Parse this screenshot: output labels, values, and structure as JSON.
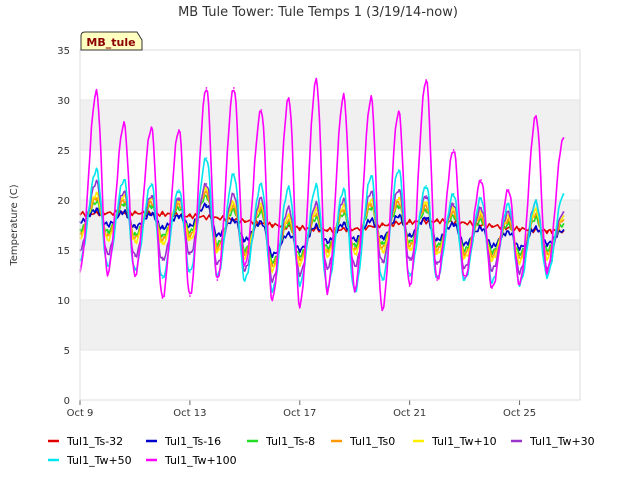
{
  "chart_data": {
    "type": "line",
    "title": "MB Tule Tower: Tule Temps 1 (3/19/14-now)",
    "xlabel": "",
    "ylabel": "Temperature (C)",
    "badge": "MB_tule",
    "ylim": [
      0,
      35
    ],
    "yticks": [
      0,
      5,
      10,
      15,
      20,
      25,
      30,
      35
    ],
    "xlim_days": [
      9,
      27.2
    ],
    "xticks": [
      {
        "day": 9,
        "label": "Oct 9"
      },
      {
        "day": 13,
        "label": "Oct 13"
      },
      {
        "day": 17,
        "label": "Oct 17"
      },
      {
        "day": 21,
        "label": "Oct 21"
      },
      {
        "day": 25,
        "label": "Oct 25"
      }
    ],
    "grid_bands": true,
    "legend_position": "bottom",
    "series": [
      {
        "name": "Tul1_Ts-32",
        "color": "#e00000",
        "x": [
          "Oct 9",
          "Oct 10",
          "Oct 11",
          "Oct 12",
          "Oct 13",
          "Oct 14",
          "Oct 15",
          "Oct 16",
          "Oct 17",
          "Oct 18",
          "Oct 19",
          "Oct 20",
          "Oct 21",
          "Oct 22",
          "Oct 23",
          "Oct 24",
          "Oct 25",
          "Oct 26",
          "Oct 26.6"
        ],
        "y": [
          18.6,
          18.7,
          18.7,
          18.6,
          18.4,
          18.2,
          17.9,
          17.5,
          17.2,
          17.0,
          17.1,
          17.5,
          17.8,
          17.9,
          17.7,
          17.4,
          17.1,
          16.9,
          16.9
        ]
      },
      {
        "name": "Tul1_Ts-16",
        "color": "#0000cc",
        "x": [
          "Oct 9",
          "Oct 9.6",
          "Oct 10",
          "Oct 10.6",
          "Oct 11",
          "Oct 11.6",
          "Oct 12",
          "Oct 12.6",
          "Oct 13",
          "Oct 13.6",
          "Oct 14",
          "Oct 14.6",
          "Oct 15",
          "Oct 15.6",
          "Oct 16",
          "Oct 16.6",
          "Oct 17",
          "Oct 17.6",
          "Oct 18",
          "Oct 18.6",
          "Oct 19",
          "Oct 19.6",
          "Oct 20",
          "Oct 20.6",
          "Oct 21",
          "Oct 21.6",
          "Oct 22",
          "Oct 22.6",
          "Oct 23",
          "Oct 23.6",
          "Oct 24",
          "Oct 24.6",
          "Oct 25",
          "Oct 25.6",
          "Oct 26",
          "Oct 26.6"
        ],
        "y": [
          17.8,
          19.0,
          17.5,
          18.8,
          17.3,
          18.6,
          17.2,
          18.4,
          17.4,
          19.5,
          16.5,
          18.0,
          16.0,
          17.8,
          14.5,
          16.6,
          15.0,
          17.4,
          15.8,
          17.6,
          16.0,
          18.0,
          16.2,
          18.4,
          16.4,
          18.2,
          16.0,
          17.6,
          15.6,
          17.2,
          15.4,
          16.8,
          15.2,
          17.2,
          15.6,
          17.0
        ]
      },
      {
        "name": "Tul1_Ts-8",
        "color": "#22dd22",
        "x": [
          "Oct 9",
          "Oct 9.6",
          "Oct 10",
          "Oct 10.6",
          "Oct 11",
          "Oct 11.6",
          "Oct 12",
          "Oct 12.6",
          "Oct 13",
          "Oct 13.6",
          "Oct 14",
          "Oct 14.6",
          "Oct 15",
          "Oct 15.6",
          "Oct 16",
          "Oct 16.6",
          "Oct 17",
          "Oct 17.6",
          "Oct 18",
          "Oct 18.6",
          "Oct 19",
          "Oct 19.6",
          "Oct 20",
          "Oct 20.6",
          "Oct 21",
          "Oct 21.6",
          "Oct 22",
          "Oct 22.6",
          "Oct 23",
          "Oct 23.6",
          "Oct 24",
          "Oct 24.6",
          "Oct 25",
          "Oct 25.6",
          "Oct 26",
          "Oct 26.6"
        ],
        "y": [
          17.0,
          19.8,
          16.8,
          19.6,
          16.5,
          19.4,
          16.4,
          19.2,
          16.8,
          20.4,
          15.6,
          19.0,
          15.0,
          18.8,
          13.8,
          17.6,
          14.4,
          18.2,
          15.2,
          18.6,
          15.4,
          19.2,
          15.6,
          19.4,
          15.8,
          19.0,
          15.4,
          18.4,
          15.0,
          18.0,
          14.8,
          17.6,
          14.6,
          18.2,
          15.0,
          17.6
        ]
      },
      {
        "name": "Tul1_Ts0",
        "color": "#ff9900",
        "x": [
          "Oct 9",
          "Oct 9.6",
          "Oct 10",
          "Oct 10.6",
          "Oct 11",
          "Oct 11.6",
          "Oct 12",
          "Oct 12.6",
          "Oct 13",
          "Oct 13.6",
          "Oct 14",
          "Oct 14.6",
          "Oct 15",
          "Oct 15.6",
          "Oct 16",
          "Oct 16.6",
          "Oct 17",
          "Oct 17.6",
          "Oct 18",
          "Oct 18.6",
          "Oct 19",
          "Oct 19.6",
          "Oct 20",
          "Oct 20.6",
          "Oct 21",
          "Oct 21.6",
          "Oct 22",
          "Oct 22.6",
          "Oct 23",
          "Oct 23.6",
          "Oct 24",
          "Oct 24.6",
          "Oct 25",
          "Oct 25.6",
          "Oct 26",
          "Oct 26.6"
        ],
        "y": [
          16.6,
          20.2,
          16.4,
          20.0,
          16.2,
          19.8,
          16.0,
          19.6,
          16.4,
          20.8,
          15.2,
          19.4,
          14.6,
          19.2,
          13.4,
          18.0,
          14.0,
          18.6,
          14.8,
          19.0,
          15.0,
          19.6,
          15.2,
          19.8,
          15.4,
          19.4,
          15.0,
          18.8,
          14.6,
          18.4,
          14.4,
          18.0,
          14.2,
          18.6,
          14.6,
          18.0
        ]
      },
      {
        "name": "Tul1_Tw+10",
        "color": "#ffee00",
        "x": [
          "Oct 9",
          "Oct 9.6",
          "Oct 10",
          "Oct 10.6",
          "Oct 11",
          "Oct 11.6",
          "Oct 12",
          "Oct 12.6",
          "Oct 13",
          "Oct 13.6",
          "Oct 14",
          "Oct 14.6",
          "Oct 15",
          "Oct 15.6",
          "Oct 16",
          "Oct 16.6",
          "Oct 17",
          "Oct 17.6",
          "Oct 18",
          "Oct 18.6",
          "Oct 19",
          "Oct 19.6",
          "Oct 20",
          "Oct 20.6",
          "Oct 21",
          "Oct 21.6",
          "Oct 22",
          "Oct 22.6",
          "Oct 23",
          "Oct 23.6",
          "Oct 24",
          "Oct 24.6",
          "Oct 25",
          "Oct 25.6",
          "Oct 26",
          "Oct 26.6"
        ],
        "y": [
          16.2,
          20.6,
          16.0,
          20.4,
          15.8,
          20.2,
          15.6,
          20.0,
          16.0,
          21.2,
          14.8,
          19.8,
          14.2,
          19.6,
          13.0,
          18.4,
          13.6,
          19.0,
          14.4,
          19.4,
          14.6,
          20.0,
          14.8,
          20.2,
          15.0,
          19.8,
          14.6,
          19.2,
          14.2,
          18.8,
          14.0,
          18.4,
          13.8,
          19.0,
          14.2,
          18.4
        ]
      },
      {
        "name": "Tul1_Tw+30",
        "color": "#9933cc",
        "x": [
          "Oct 9",
          "Oct 9.6",
          "Oct 10",
          "Oct 10.6",
          "Oct 11",
          "Oct 11.6",
          "Oct 12",
          "Oct 12.6",
          "Oct 13",
          "Oct 13.6",
          "Oct 14",
          "Oct 14.6",
          "Oct 15",
          "Oct 15.6",
          "Oct 16",
          "Oct 16.6",
          "Oct 17",
          "Oct 17.6",
          "Oct 18",
          "Oct 18.6",
          "Oct 19",
          "Oct 19.6",
          "Oct 20",
          "Oct 20.6",
          "Oct 21",
          "Oct 21.6",
          "Oct 22",
          "Oct 22.6",
          "Oct 23",
          "Oct 23.6",
          "Oct 24",
          "Oct 24.6",
          "Oct 25",
          "Oct 25.6",
          "Oct 26",
          "Oct 26.6"
        ],
        "y": [
          15.0,
          21.8,
          14.6,
          20.8,
          14.4,
          20.4,
          14.0,
          20.2,
          14.6,
          21.6,
          13.6,
          20.6,
          13.0,
          20.2,
          12.0,
          19.2,
          12.6,
          19.6,
          13.2,
          20.0,
          13.4,
          20.8,
          13.8,
          21.0,
          14.0,
          20.4,
          13.6,
          19.6,
          13.2,
          19.2,
          13.0,
          18.8,
          12.8,
          19.8,
          13.2,
          18.8
        ]
      },
      {
        "name": "Tul1_Tw+50",
        "color": "#00e5ee",
        "x": [
          "Oct 9",
          "Oct 9.6",
          "Oct 10",
          "Oct 10.6",
          "Oct 11",
          "Oct 11.6",
          "Oct 12",
          "Oct 12.6",
          "Oct 13",
          "Oct 13.6",
          "Oct 14",
          "Oct 14.6",
          "Oct 15",
          "Oct 15.6",
          "Oct 16",
          "Oct 16.6",
          "Oct 17",
          "Oct 17.6",
          "Oct 18",
          "Oct 18.6",
          "Oct 19",
          "Oct 19.6",
          "Oct 20",
          "Oct 20.6",
          "Oct 21",
          "Oct 21.6",
          "Oct 22",
          "Oct 22.6",
          "Oct 23",
          "Oct 23.6",
          "Oct 24",
          "Oct 24.6",
          "Oct 25",
          "Oct 25.6",
          "Oct 26",
          "Oct 26.6"
        ],
        "y": [
          14.0,
          23.0,
          13.4,
          22.0,
          13.0,
          21.6,
          12.2,
          21.0,
          12.8,
          24.2,
          12.4,
          22.6,
          12.0,
          21.6,
          11.0,
          21.2,
          11.6,
          21.4,
          11.2,
          21.0,
          10.8,
          22.4,
          12.0,
          23.0,
          12.4,
          21.4,
          12.2,
          20.6,
          12.0,
          20.2,
          11.8,
          19.6,
          11.6,
          19.8,
          12.4,
          20.6
        ]
      },
      {
        "name": "Tul1_Tw+100",
        "color": "#ff00ff",
        "x": [
          "Oct 9",
          "Oct 9.6",
          "Oct 10",
          "Oct 10.6",
          "Oct 11",
          "Oct 11.6",
          "Oct 12",
          "Oct 12.6",
          "Oct 13",
          "Oct 13.6",
          "Oct 14",
          "Oct 14.6",
          "Oct 15",
          "Oct 15.6",
          "Oct 16",
          "Oct 16.6",
          "Oct 17",
          "Oct 17.6",
          "Oct 18",
          "Oct 18.6",
          "Oct 19",
          "Oct 19.6",
          "Oct 20",
          "Oct 20.6",
          "Oct 21",
          "Oct 21.6",
          "Oct 22",
          "Oct 22.6",
          "Oct 23",
          "Oct 23.6",
          "Oct 24",
          "Oct 24.6",
          "Oct 25",
          "Oct 25.6",
          "Oct 26",
          "Oct 26.6"
        ],
        "y": [
          13.0,
          30.8,
          12.6,
          27.6,
          12.4,
          27.2,
          10.2,
          27.0,
          10.4,
          31.2,
          12.0,
          31.2,
          13.4,
          29.0,
          10.0,
          30.2,
          9.4,
          32.0,
          10.8,
          30.4,
          11.0,
          30.2,
          9.0,
          28.8,
          11.4,
          32.0,
          12.0,
          25.0,
          12.2,
          22.0,
          11.2,
          21.0,
          11.6,
          28.4,
          12.8,
          26.2
        ]
      }
    ]
  }
}
